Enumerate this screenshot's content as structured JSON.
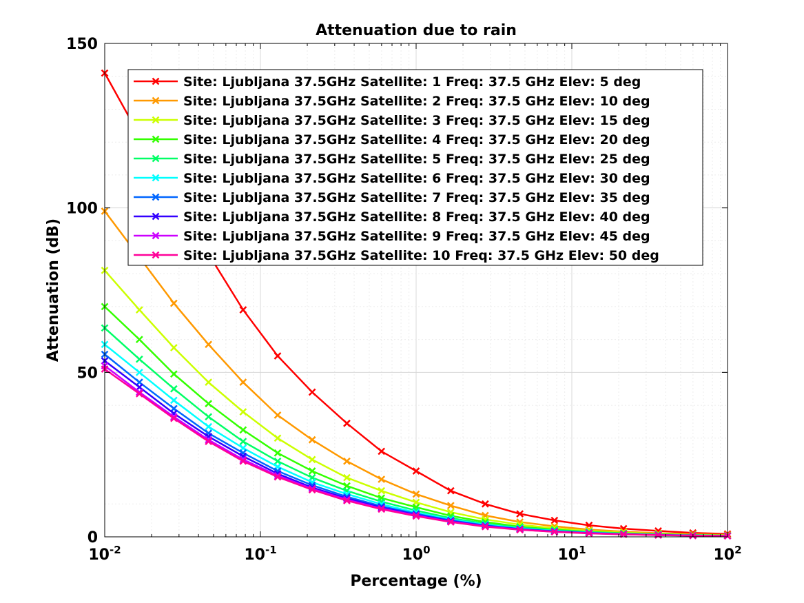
{
  "chart_data": {
    "type": "line",
    "title": "Attenuation due to rain",
    "xlabel": "Percentage (%)",
    "ylabel": "Attenuation (dB)",
    "xscale": "log",
    "xlim": [
      0.01,
      100
    ],
    "ylim": [
      0,
      150
    ],
    "grid": true,
    "legend_position": "top-right",
    "marker": "x",
    "x_ticks": [
      {
        "base": "10",
        "exp": "-2"
      },
      {
        "base": "10",
        "exp": "-1"
      },
      {
        "base": "10",
        "exp": "0"
      },
      {
        "base": "10",
        "exp": "1"
      },
      {
        "base": "10",
        "exp": "2"
      }
    ],
    "y_ticks": [
      "0",
      "50",
      "100",
      "150"
    ],
    "x": [
      0.01,
      0.0167,
      0.0278,
      0.0464,
      0.0774,
      0.129,
      0.215,
      0.359,
      0.599,
      1,
      1.67,
      2.78,
      4.64,
      7.74,
      12.9,
      21.5,
      35.9,
      59.9,
      100
    ],
    "series": [
      {
        "name": "Site: Ljubljana 37.5GHz Satellite: 1 Freq: 37.5 GHz Elev: 5 deg",
        "color": "#ff0000",
        "values": [
          141,
          122,
          104,
          86,
          69,
          55,
          44,
          34.5,
          26,
          20,
          14,
          10,
          7,
          5,
          3.5,
          2.5,
          1.8,
          1.2,
          0.9
        ]
      },
      {
        "name": "Site: Ljubljana 37.5GHz Satellite: 2 Freq: 37.5 GHz Elev: 10 deg",
        "color": "#ff9900",
        "values": [
          99,
          85,
          71,
          58.5,
          47,
          37,
          29.5,
          23,
          17.5,
          13,
          9.5,
          6.5,
          4.5,
          3.2,
          2.2,
          1.6,
          1.1,
          0.8,
          0.6
        ]
      },
      {
        "name": "Site: Ljubljana 37.5GHz Satellite: 3 Freq: 37.5 GHz Elev: 15 deg",
        "color": "#ccff00",
        "values": [
          81,
          69,
          57.5,
          47,
          38,
          30,
          23.5,
          18,
          14,
          10.5,
          7.5,
          5.3,
          3.7,
          2.6,
          1.8,
          1.3,
          0.9,
          0.6,
          0.45
        ]
      },
      {
        "name": "Site: Ljubljana 37.5GHz Satellite: 4 Freq: 37.5 GHz Elev: 20 deg",
        "color": "#33ff00",
        "values": [
          70,
          60,
          49.5,
          40.5,
          32.5,
          25.5,
          20,
          15.5,
          11.8,
          9,
          6.4,
          4.5,
          3.1,
          2.2,
          1.5,
          1.1,
          0.8,
          0.55,
          0.4
        ]
      },
      {
        "name": "Site: Ljubljana 37.5GHz Satellite: 5 Freq: 37.5 GHz Elev: 25 deg",
        "color": "#00ff66",
        "values": [
          63.5,
          54,
          45,
          36.5,
          29,
          23,
          18,
          14,
          10.7,
          8,
          5.7,
          4,
          2.8,
          2,
          1.4,
          1,
          0.7,
          0.5,
          0.35
        ]
      },
      {
        "name": "Site: Ljubljana 37.5GHz Satellite: 6 Freq: 37.5 GHz Elev: 30 deg",
        "color": "#00ffff",
        "values": [
          58.5,
          50,
          41.5,
          33.5,
          27,
          21.3,
          16.6,
          13,
          9.9,
          7.4,
          5.3,
          3.7,
          2.6,
          1.8,
          1.3,
          0.9,
          0.65,
          0.45,
          0.33
        ]
      },
      {
        "name": "Site: Ljubljana 37.5GHz Satellite: 7 Freq: 37.5 GHz Elev: 35 deg",
        "color": "#0066ff",
        "values": [
          55.5,
          47,
          39,
          31.5,
          25.5,
          20,
          15.7,
          12.2,
          9.3,
          7,
          5,
          3.5,
          2.4,
          1.7,
          1.2,
          0.85,
          0.6,
          0.42,
          0.3
        ]
      },
      {
        "name": "Site: Ljubljana 37.5GHz Satellite: 8 Freq: 37.5 GHz Elev: 40 deg",
        "color": "#3300ff",
        "values": [
          53.5,
          45.5,
          37.5,
          30.5,
          24.5,
          19.2,
          15,
          11.7,
          8.9,
          6.7,
          4.8,
          3.3,
          2.3,
          1.6,
          1.15,
          0.8,
          0.58,
          0.4,
          0.29
        ]
      },
      {
        "name": "Site: Ljubljana 37.5GHz Satellite: 9 Freq: 37.5 GHz Elev: 45 deg",
        "color": "#cc00ff",
        "values": [
          52,
          44,
          36.5,
          29.5,
          23.5,
          18.6,
          14.6,
          11.3,
          8.6,
          6.5,
          4.6,
          3.2,
          2.2,
          1.55,
          1.1,
          0.78,
          0.55,
          0.39,
          0.28
        ]
      },
      {
        "name": "Site: Ljubljana 37.5GHz Satellite: 10 Freq: 37.5 GHz Elev: 50 deg",
        "color": "#ff0099",
        "values": [
          51,
          43.5,
          36,
          29,
          23,
          18.2,
          14.3,
          11,
          8.4,
          6.3,
          4.5,
          3.1,
          2.15,
          1.5,
          1.05,
          0.75,
          0.53,
          0.38,
          0.27
        ]
      }
    ]
  }
}
